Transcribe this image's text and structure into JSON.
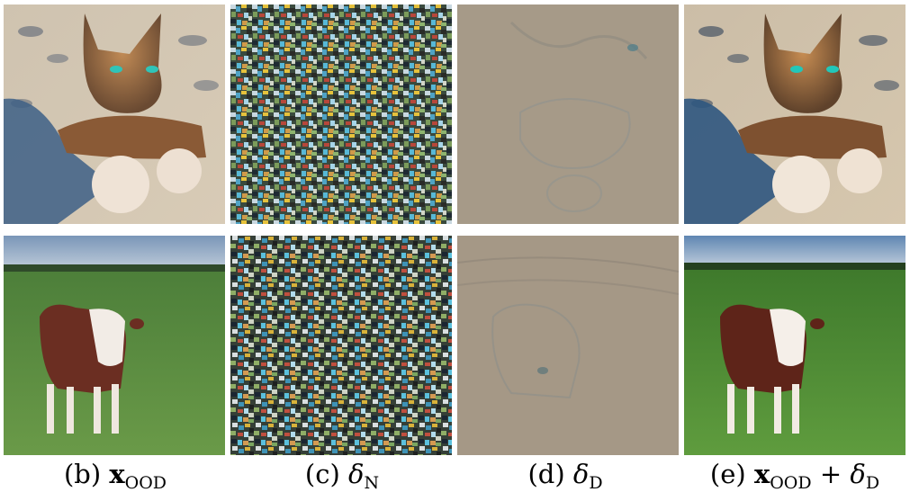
{
  "figure": {
    "rows": [
      {
        "name": "cat",
        "panels": [
          "cat-original",
          "cat-noise",
          "cat-diffusion-delta",
          "cat-enhanced"
        ]
      },
      {
        "name": "cow",
        "panels": [
          "cow-original",
          "cow-noise",
          "cow-diffusion-delta",
          "cow-enhanced"
        ]
      }
    ],
    "captions": {
      "b": {
        "prefix": "(b) ",
        "main": "x",
        "sub": "OOD",
        "suffix": ""
      },
      "c": {
        "prefix": "(c) ",
        "main": "δ",
        "sub": "N",
        "suffix": ""
      },
      "d": {
        "prefix": "(d) ",
        "main": "δ",
        "sub": "D",
        "suffix": ""
      },
      "e": {
        "prefix": "(e) ",
        "main": "x",
        "sub": "OOD",
        "suffix": " + ",
        "main2": "δ",
        "sub2": "D"
      }
    }
  }
}
